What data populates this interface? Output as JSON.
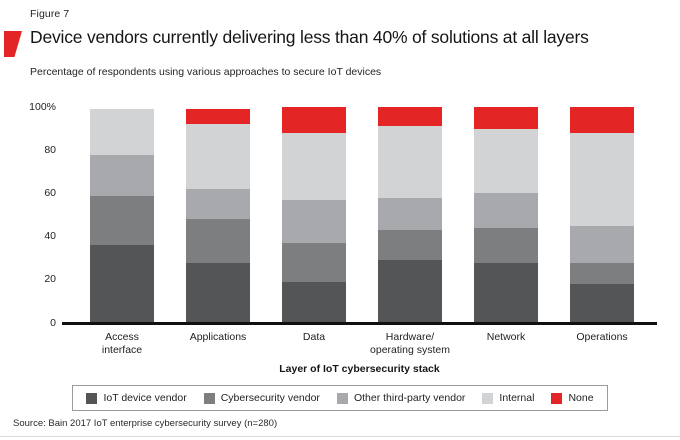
{
  "figure": {
    "label": "Figure 7"
  },
  "header": {
    "title": "Device vendors currently delivering less than 40% of solutions at all layers",
    "subtitle": "Percentage of respondents using various approaches to secure IoT devices"
  },
  "footer": {
    "source": "Source: Bain 2017 IoT enterprise cybersecurity survey (n=280)"
  },
  "colors": {
    "accent_red": "#e32526",
    "axis_line": "#101010",
    "legend_border": "#9a9a9a"
  },
  "chart_data": {
    "type": "bar",
    "stacked": true,
    "title": "Percentage of respondents using various approaches to secure IoT devices",
    "xlabel": "Layer of IoT cybersecurity stack",
    "ylabel": "",
    "ylim": [
      0,
      100
    ],
    "grid": false,
    "legend_position": "bottom",
    "yticks": [
      {
        "value": 0,
        "label": "0"
      },
      {
        "value": 20,
        "label": "20"
      },
      {
        "value": 40,
        "label": "40"
      },
      {
        "value": 60,
        "label": "60"
      },
      {
        "value": 80,
        "label": "80"
      },
      {
        "value": 100,
        "label": "100%"
      }
    ],
    "categories": [
      "Access\ninterface",
      "Applications",
      "Data",
      "Hardware/\noperating system",
      "Network",
      "Operations"
    ],
    "series": [
      {
        "name": "IoT device vendor",
        "color": "#545557",
        "values": [
          36,
          28,
          19,
          29,
          28,
          18
        ]
      },
      {
        "name": "Cybersecurity vendor",
        "color": "#7d7e80",
        "values": [
          23,
          20,
          18,
          14,
          16,
          10
        ]
      },
      {
        "name": "Other third-party vendor",
        "color": "#a8a9ac",
        "values": [
          19,
          14,
          20,
          15,
          16,
          17
        ]
      },
      {
        "name": "Internal",
        "color": "#d2d3d4",
        "values": [
          21,
          30,
          31,
          33,
          30,
          43
        ]
      },
      {
        "name": "None",
        "color": "#e32526",
        "values": [
          0,
          7,
          12,
          9,
          10,
          12
        ]
      }
    ]
  }
}
